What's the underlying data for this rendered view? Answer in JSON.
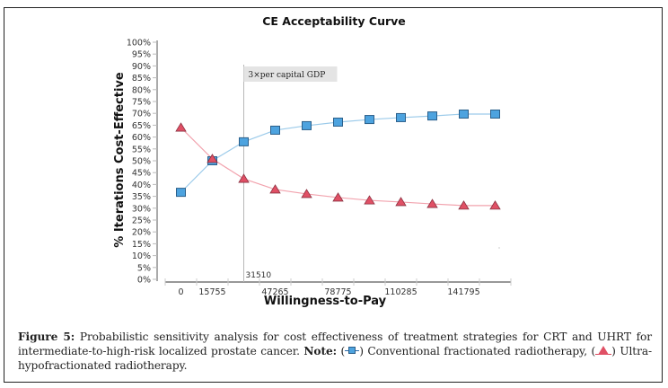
{
  "chart_data": {
    "type": "line",
    "title": "CE Acceptability Curve",
    "xlabel": "Willingness-to-Pay",
    "ylabel": "% Iterations Cost-Effective",
    "x": [
      0,
      15755,
      31510,
      47265,
      63020,
      78775,
      94530,
      110285,
      126040,
      141795,
      157550
    ],
    "x_tick_labels": [
      "0",
      "15755",
      "",
      "47265",
      "",
      "78775",
      "",
      "110285",
      "",
      "141795",
      ""
    ],
    "ylim": [
      0,
      100
    ],
    "y_ticks": [
      0,
      5,
      10,
      15,
      20,
      25,
      30,
      35,
      40,
      45,
      50,
      55,
      60,
      65,
      70,
      75,
      80,
      85,
      90,
      95,
      100
    ],
    "y_tick_suffix": "%",
    "grid": false,
    "series": [
      {
        "name": "Conventional fractionated radiotherapy (CRT)",
        "marker": "square",
        "color": "#4da3df",
        "line_color": "#9ccbea",
        "values": [
          36.7,
          50.0,
          58.0,
          62.9,
          64.8,
          66.3,
          67.4,
          68.2,
          68.9,
          69.7,
          69.7
        ]
      },
      {
        "name": "Ultra-hypofractionated radiotherapy (UHRT)",
        "marker": "triangle",
        "color": "#e05065",
        "line_color": "#f2a3ae",
        "values": [
          64.0,
          50.8,
          42.4,
          37.9,
          36.0,
          34.5,
          33.3,
          32.6,
          31.8,
          31.1,
          31.1
        ]
      }
    ],
    "annotations": [
      {
        "type": "vertical-reference-line",
        "x": 31510,
        "label": "3×per capital GDP",
        "value_label": "31510"
      }
    ]
  },
  "caption": {
    "figure_label": "Figure 5:",
    "text": " Probabilistic sensitivity analysis for cost effectiveness of treatment strategies for CRT and UHRT for intermediate-to-high-risk localized prostate cancer. ",
    "note_label": "Note:",
    "legend_crt": " Conventional fractionated radiotherapy, ",
    "legend_uhrt": " Ultra-hypofractionated radiotherapy."
  }
}
